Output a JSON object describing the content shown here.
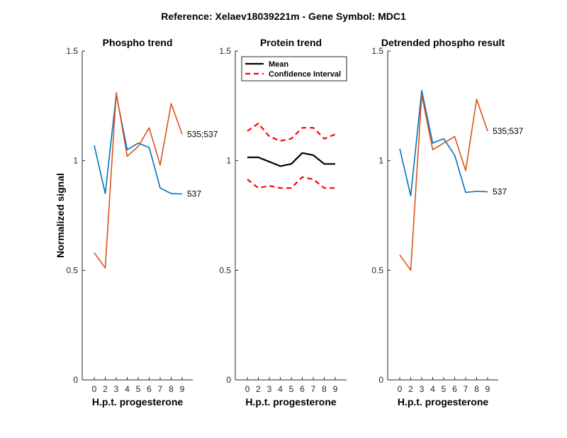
{
  "figure": {
    "title": "Reference:  Xelaev18039221m - Gene Symbol:  MDC1"
  },
  "colors": {
    "blue": "#0072BD",
    "orange": "#D95319",
    "black": "#000000",
    "red": "#FF0000"
  },
  "chart_data": [
    {
      "type": "line",
      "title": "Phospho trend",
      "xlabel": "H.p.t. progesterone",
      "ylabel": "Normalized signal",
      "x": [
        "0",
        "2",
        "3",
        "4",
        "5",
        "6",
        "7",
        "8",
        "9"
      ],
      "ylim": [
        0,
        1.5
      ],
      "yticks": [
        "0",
        "0.5",
        "1",
        "1.5"
      ],
      "grid": false,
      "series": [
        {
          "name": "537",
          "color": "blue",
          "values": [
            1.07,
            0.85,
            1.3,
            1.05,
            1.08,
            1.06,
            0.875,
            0.85,
            0.848
          ]
        },
        {
          "name": "535;537",
          "color": "orange",
          "values": [
            0.58,
            0.51,
            1.31,
            1.02,
            1.065,
            1.15,
            0.98,
            1.26,
            1.12
          ]
        }
      ]
    },
    {
      "type": "line",
      "title": "Protein trend",
      "xlabel": "H.p.t. progesterone",
      "x": [
        "0",
        "2",
        "3",
        "4",
        "5",
        "6",
        "7",
        "8",
        "9"
      ],
      "ylim": [
        0,
        1.5
      ],
      "yticks": [
        "0",
        "0.5",
        "1",
        "1.5"
      ],
      "grid": false,
      "legend_position": "top-left",
      "series": [
        {
          "name": "Mean",
          "color": "black",
          "style": "solid",
          "values": [
            1.015,
            1.015,
            0.995,
            0.975,
            0.985,
            1.035,
            1.025,
            0.985,
            0.985
          ]
        },
        {
          "name": "Confidence Interval",
          "color": "red",
          "style": "dashed",
          "values": [
            1.135,
            1.17,
            1.11,
            1.09,
            1.1,
            1.15,
            1.15,
            1.1,
            1.12
          ]
        },
        {
          "name": "",
          "color": "red",
          "style": "dashed",
          "values": [
            0.915,
            0.875,
            0.885,
            0.875,
            0.875,
            0.925,
            0.915,
            0.875,
            0.875
          ]
        }
      ]
    },
    {
      "type": "line",
      "title": "Detrended phospho result",
      "xlabel": "H.p.t. progesterone",
      "x": [
        "0",
        "2",
        "3",
        "4",
        "5",
        "6",
        "7",
        "8",
        "9"
      ],
      "ylim": [
        0,
        1.5
      ],
      "yticks": [
        "0",
        "0.5",
        "1",
        "1.5"
      ],
      "grid": false,
      "series": [
        {
          "name": "537",
          "color": "blue",
          "values": [
            1.055,
            0.84,
            1.32,
            1.08,
            1.1,
            1.025,
            0.855,
            0.86,
            0.858
          ]
        },
        {
          "name": "535;537",
          "color": "orange",
          "values": [
            0.57,
            0.5,
            1.3,
            1.05,
            1.08,
            1.11,
            0.955,
            1.28,
            1.135
          ]
        }
      ]
    }
  ]
}
